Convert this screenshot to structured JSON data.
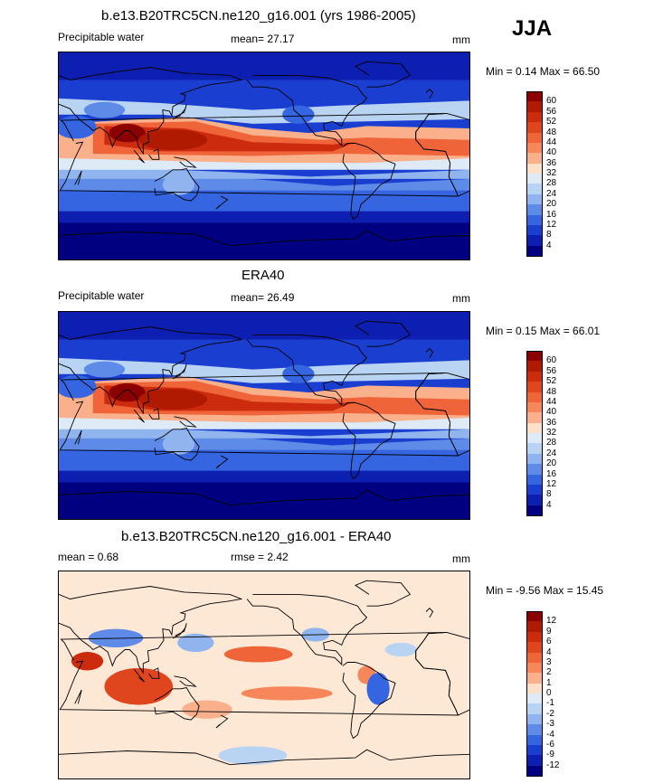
{
  "season": "JJA",
  "panels": [
    {
      "title": "b.e13.B20TRC5CN.ne120_g16.001 (yrs 1986-2005)",
      "left_label": "Precipitable water",
      "mean_label": "mean=  27.17",
      "units": "mm",
      "minmax": "Min =   0.14 Max =  66.50",
      "colorbar": {
        "labels": [
          "60",
          "56",
          "52",
          "48",
          "44",
          "40",
          "36",
          "32",
          "28",
          "24",
          "20",
          "16",
          "12",
          "8",
          "4"
        ],
        "colors": [
          "#8b0000",
          "#b01a00",
          "#cc2b0e",
          "#e0461d",
          "#f0643a",
          "#f7875a",
          "#fbb08c",
          "#fde0c8",
          "#deebf7",
          "#b9d3f2",
          "#8fb4ee",
          "#5e8ae8",
          "#3565e0",
          "#1a3ed0",
          "#0d1fb0",
          "#000080"
        ]
      },
      "chart_data": {
        "type": "heatmap",
        "variable": "Precipitable water",
        "units": "mm",
        "mean": 27.17,
        "min": 0.14,
        "max": 66.5
      }
    },
    {
      "title": "ERA40",
      "left_label": "Precipitable water",
      "mean_label": "mean=  26.49",
      "units": "mm",
      "minmax": "Min =   0.15 Max =  66.01",
      "colorbar": {
        "labels": [
          "60",
          "56",
          "52",
          "48",
          "44",
          "40",
          "36",
          "32",
          "28",
          "24",
          "20",
          "16",
          "12",
          "8",
          "4"
        ],
        "colors": [
          "#8b0000",
          "#b01a00",
          "#cc2b0e",
          "#e0461d",
          "#f0643a",
          "#f7875a",
          "#fbb08c",
          "#fde0c8",
          "#deebf7",
          "#b9d3f2",
          "#8fb4ee",
          "#5e8ae8",
          "#3565e0",
          "#1a3ed0",
          "#0d1fb0",
          "#000080"
        ]
      },
      "chart_data": {
        "type": "heatmap",
        "variable": "Precipitable water",
        "units": "mm",
        "mean": 26.49,
        "min": 0.15,
        "max": 66.01
      }
    },
    {
      "title": "b.e13.B20TRC5CN.ne120_g16.001 - ERA40",
      "left_label": "mean =   0.68",
      "mean_label": "rmse =   2.42",
      "units": "mm",
      "minmax": "Min =  -9.56 Max =  15.45",
      "colorbar": {
        "labels": [
          "12",
          "9",
          "6",
          "4",
          "3",
          "2",
          "1",
          "0",
          "-1",
          "-2",
          "-3",
          "-4",
          "-6",
          "-9",
          "-12"
        ],
        "colors": [
          "#8b0000",
          "#b01a00",
          "#cc2b0e",
          "#e0461d",
          "#f0643a",
          "#f7875a",
          "#fbb08c",
          "#fde0c8",
          "#deebf7",
          "#b9d3f2",
          "#8fb4ee",
          "#5e8ae8",
          "#3565e0",
          "#1a3ed0",
          "#0d1fb0",
          "#000080"
        ]
      },
      "chart_data": {
        "type": "heatmap",
        "variable": "difference",
        "units": "mm",
        "mean": 0.68,
        "rmse": 2.42,
        "min": -9.56,
        "max": 15.45
      }
    }
  ]
}
